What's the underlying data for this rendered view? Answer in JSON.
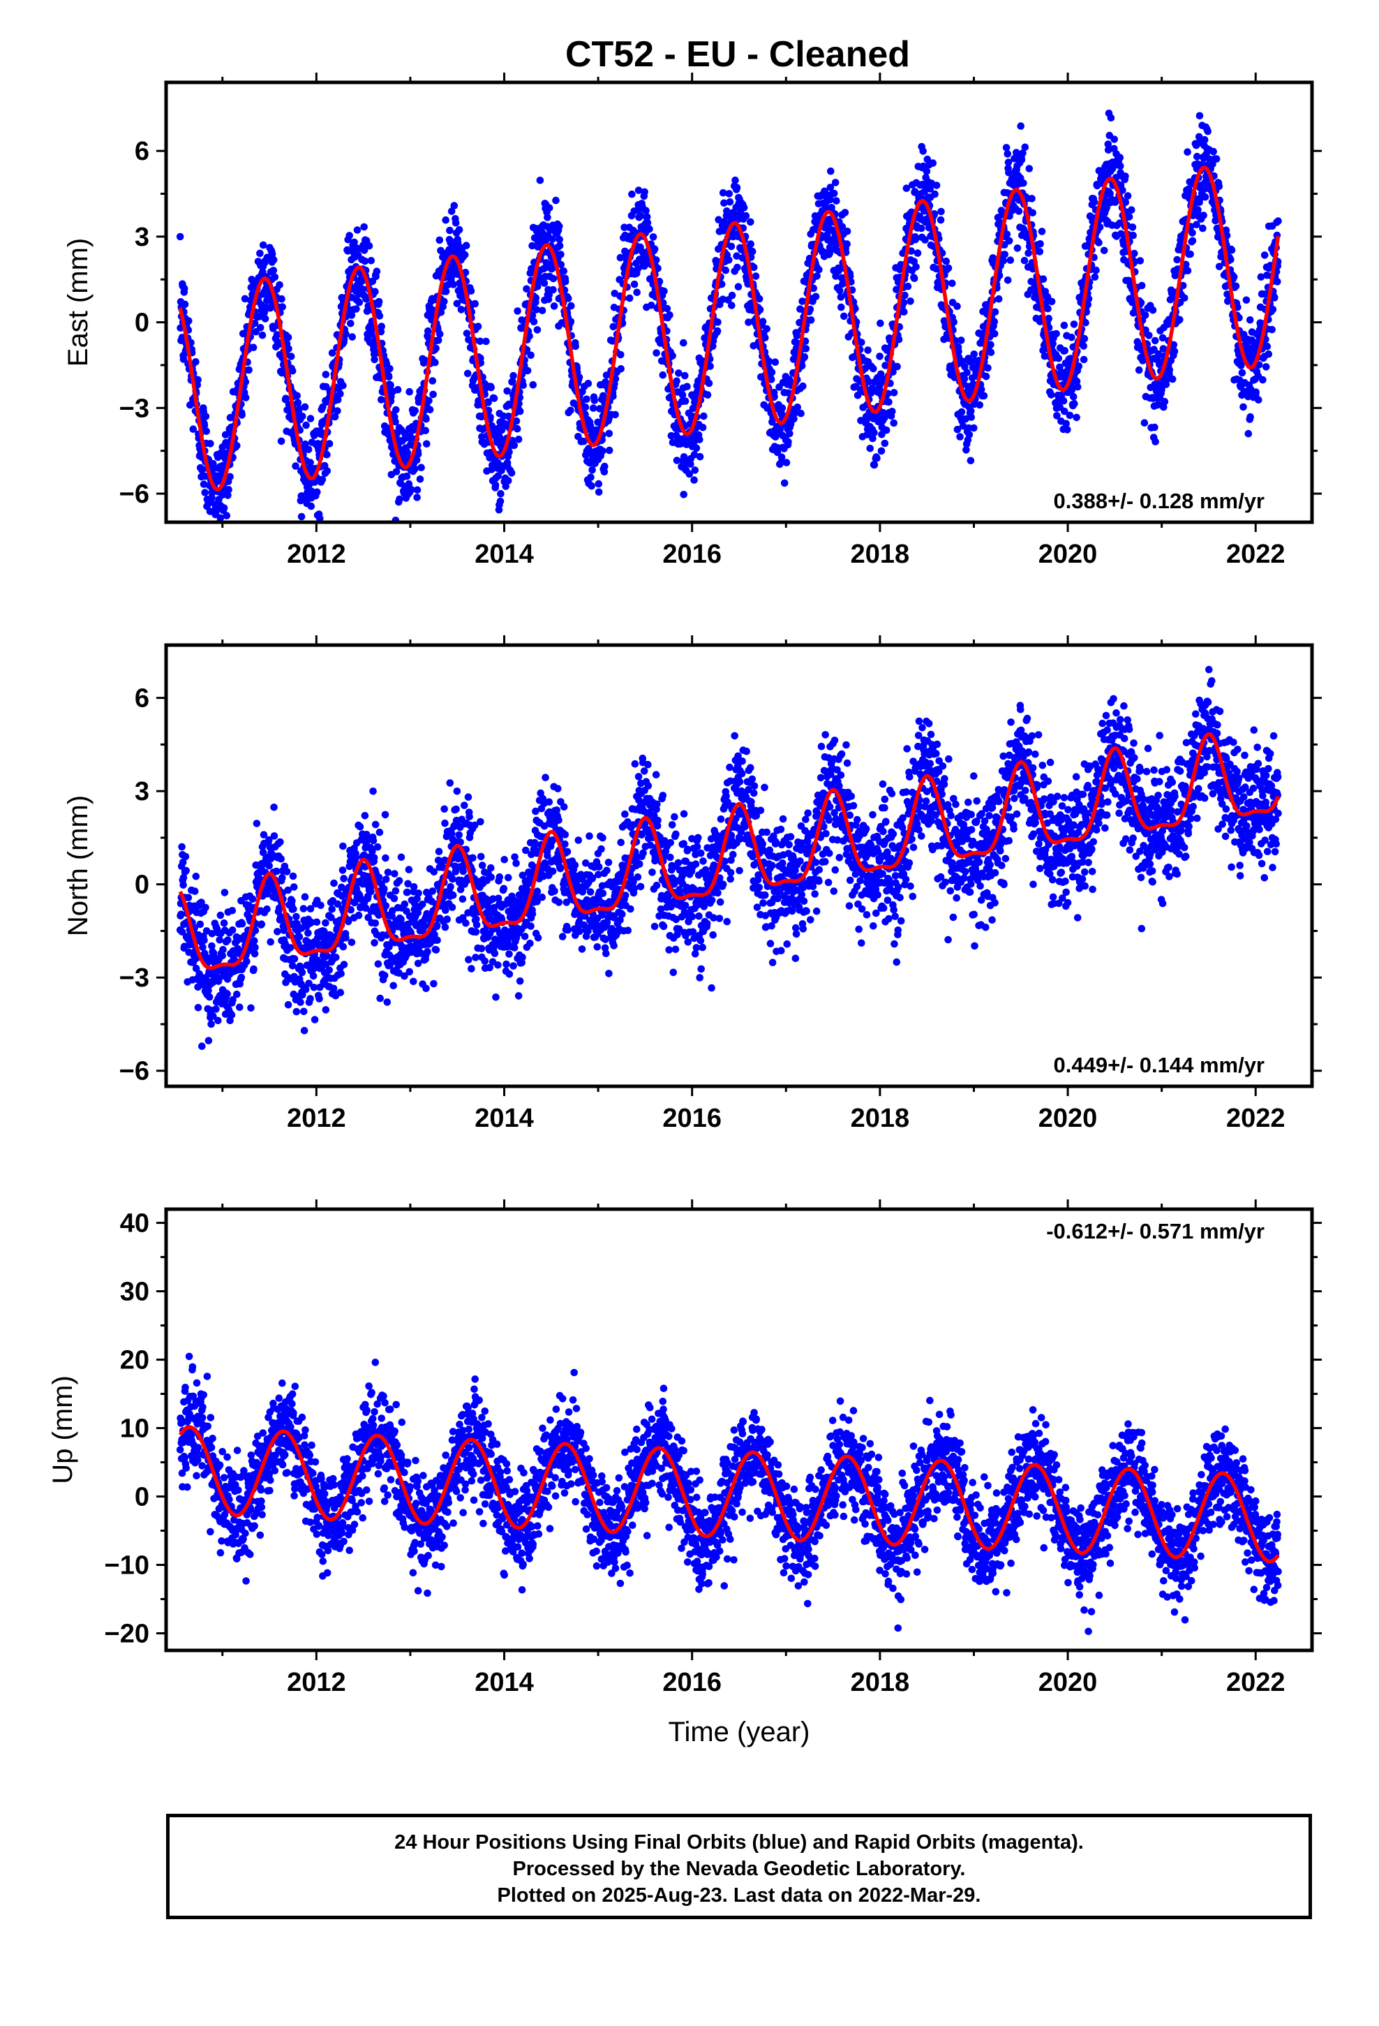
{
  "title": "CT52  - EU - Cleaned",
  "colors": {
    "final_orbits": "#0000ff",
    "model": "#ff0000",
    "frame": "#000000"
  },
  "footer": {
    "line1": "24 Hour Positions Using Final Orbits (blue) and Rapid Orbits (magenta).",
    "line2": "Processed by the Nevada Geodetic Laboratory.",
    "line3": "Plotted on 2025-Aug-23. Last data on 2022-Mar-29."
  },
  "chart_data": [
    {
      "type": "scatter",
      "component": "east",
      "ylabel": "East (mm)",
      "xlabel": "",
      "xlim": [
        2010.4,
        2022.6
      ],
      "ylim": [
        -7.0,
        8.4
      ],
      "xticks": [
        "2012",
        "2014",
        "2016",
        "2018",
        "2020",
        "2022"
      ],
      "yticks": [
        "6",
        "3",
        "0",
        "−3",
        "−6"
      ],
      "ytick_values": [
        6,
        3,
        0,
        -3,
        -6
      ],
      "rate": "0.388+/- 0.128 mm/yr",
      "rate_position": "bottom-right",
      "model": {
        "x_start": 2010.55,
        "x_end": 2022.24,
        "value_at_start": 0.5,
        "annual_amplitude": 3.6,
        "annual_peak_year_fraction": 0.45,
        "trend_mm_per_yr": 0.388,
        "semiannual_amplitude": 0.0,
        "semiannual_peak_year_fraction": 0.0
      },
      "scatter_sd": 0.9,
      "series": [
        {
          "kind": "points",
          "x_start": 2010.55,
          "x_end": 2022.24,
          "n": 3900
        },
        {
          "kind": "model"
        }
      ]
    },
    {
      "type": "scatter",
      "component": "north",
      "ylabel": "North (mm)",
      "xlabel": "",
      "xlim": [
        2010.4,
        2022.6
      ],
      "ylim": [
        -6.5,
        7.7
      ],
      "xticks": [
        "2012",
        "2014",
        "2016",
        "2018",
        "2020",
        "2022"
      ],
      "yticks": [
        "6",
        "3",
        "0",
        "−3",
        "−6"
      ],
      "ytick_values": [
        6,
        3,
        0,
        -3,
        -6
      ],
      "rate": "0.449+/- 0.144 mm/yr",
      "rate_position": "bottom-right",
      "model": {
        "x_start": 2010.55,
        "x_end": 2022.24,
        "value_at_start": -0.6,
        "annual_amplitude": 1.35,
        "annual_peak_year_fraction": 0.5,
        "trend_mm_per_yr": 0.449,
        "semiannual_amplitude": 0.45,
        "semiannual_peak_year_fraction": 0.0
      },
      "scatter_sd": 0.95,
      "series": [
        {
          "kind": "points",
          "x_start": 2010.55,
          "x_end": 2022.24,
          "n": 3900
        },
        {
          "kind": "model"
        }
      ]
    },
    {
      "type": "scatter",
      "component": "up",
      "ylabel": "Up (mm)",
      "xlabel": "Time (year)",
      "xlim": [
        2010.4,
        2022.6
      ],
      "ylim": [
        -22.5,
        42.0
      ],
      "xticks": [
        "2012",
        "2014",
        "2016",
        "2018",
        "2020",
        "2022"
      ],
      "yticks": [
        "40",
        "30",
        "20",
        "10",
        "0",
        "−10",
        "−20"
      ],
      "ytick_values": [
        40,
        30,
        20,
        10,
        0,
        -10,
        -20
      ],
      "rate": "-0.612+/- 0.571 mm/yr",
      "rate_position": "top-right",
      "model": {
        "x_start": 2010.55,
        "x_end": 2022.24,
        "value_at_start": 9.0,
        "annual_amplitude": 6.3,
        "annual_peak_year_fraction": 0.65,
        "trend_mm_per_yr": -0.612,
        "semiannual_amplitude": 0.0,
        "semiannual_peak_year_fraction": 0.0
      },
      "scatter_sd": 3.5,
      "series": [
        {
          "kind": "points",
          "x_start": 2010.55,
          "x_end": 2022.24,
          "n": 3900
        },
        {
          "kind": "model"
        }
      ]
    }
  ]
}
